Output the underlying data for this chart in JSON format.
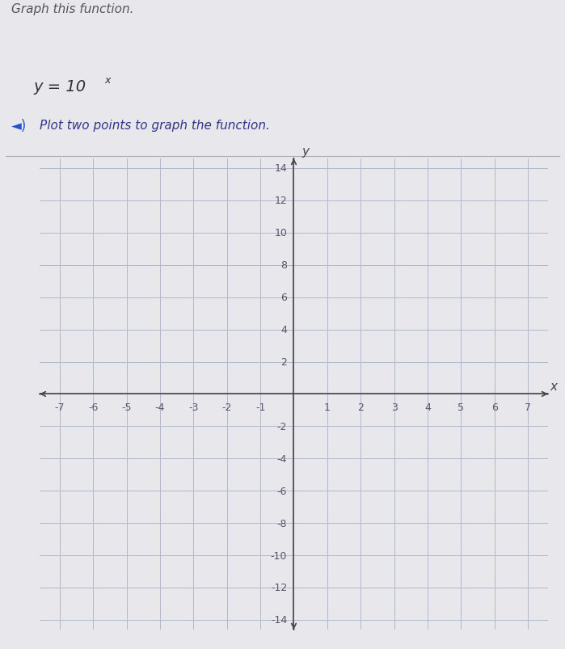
{
  "bg_color": "#e8e8ec",
  "plot_bg": "#f5f5f8",
  "grid_color": "#b0b8d0",
  "axis_color": "#444444",
  "tick_label_color": "#555566",
  "tick_fontsize": 9,
  "label_fontsize": 11,
  "xlim": [
    -7,
    7
  ],
  "ylim": [
    -14,
    14
  ],
  "xticks": [
    -7,
    -6,
    -5,
    -4,
    -3,
    -2,
    -1,
    0,
    1,
    2,
    3,
    4,
    5,
    6,
    7
  ],
  "yticks": [
    -14,
    -12,
    -10,
    -8,
    -6,
    -4,
    -2,
    0,
    2,
    4,
    6,
    8,
    10,
    12,
    14
  ],
  "xlabel": "x",
  "ylabel": "y",
  "header_text": "Graph this function.",
  "equation_base": "y = 10",
  "equation_exp": "x",
  "subtitle_text": "Plot two points to graph the function.",
  "header_color": "#555555",
  "subtitle_color": "#333388",
  "equation_color": "#333333"
}
